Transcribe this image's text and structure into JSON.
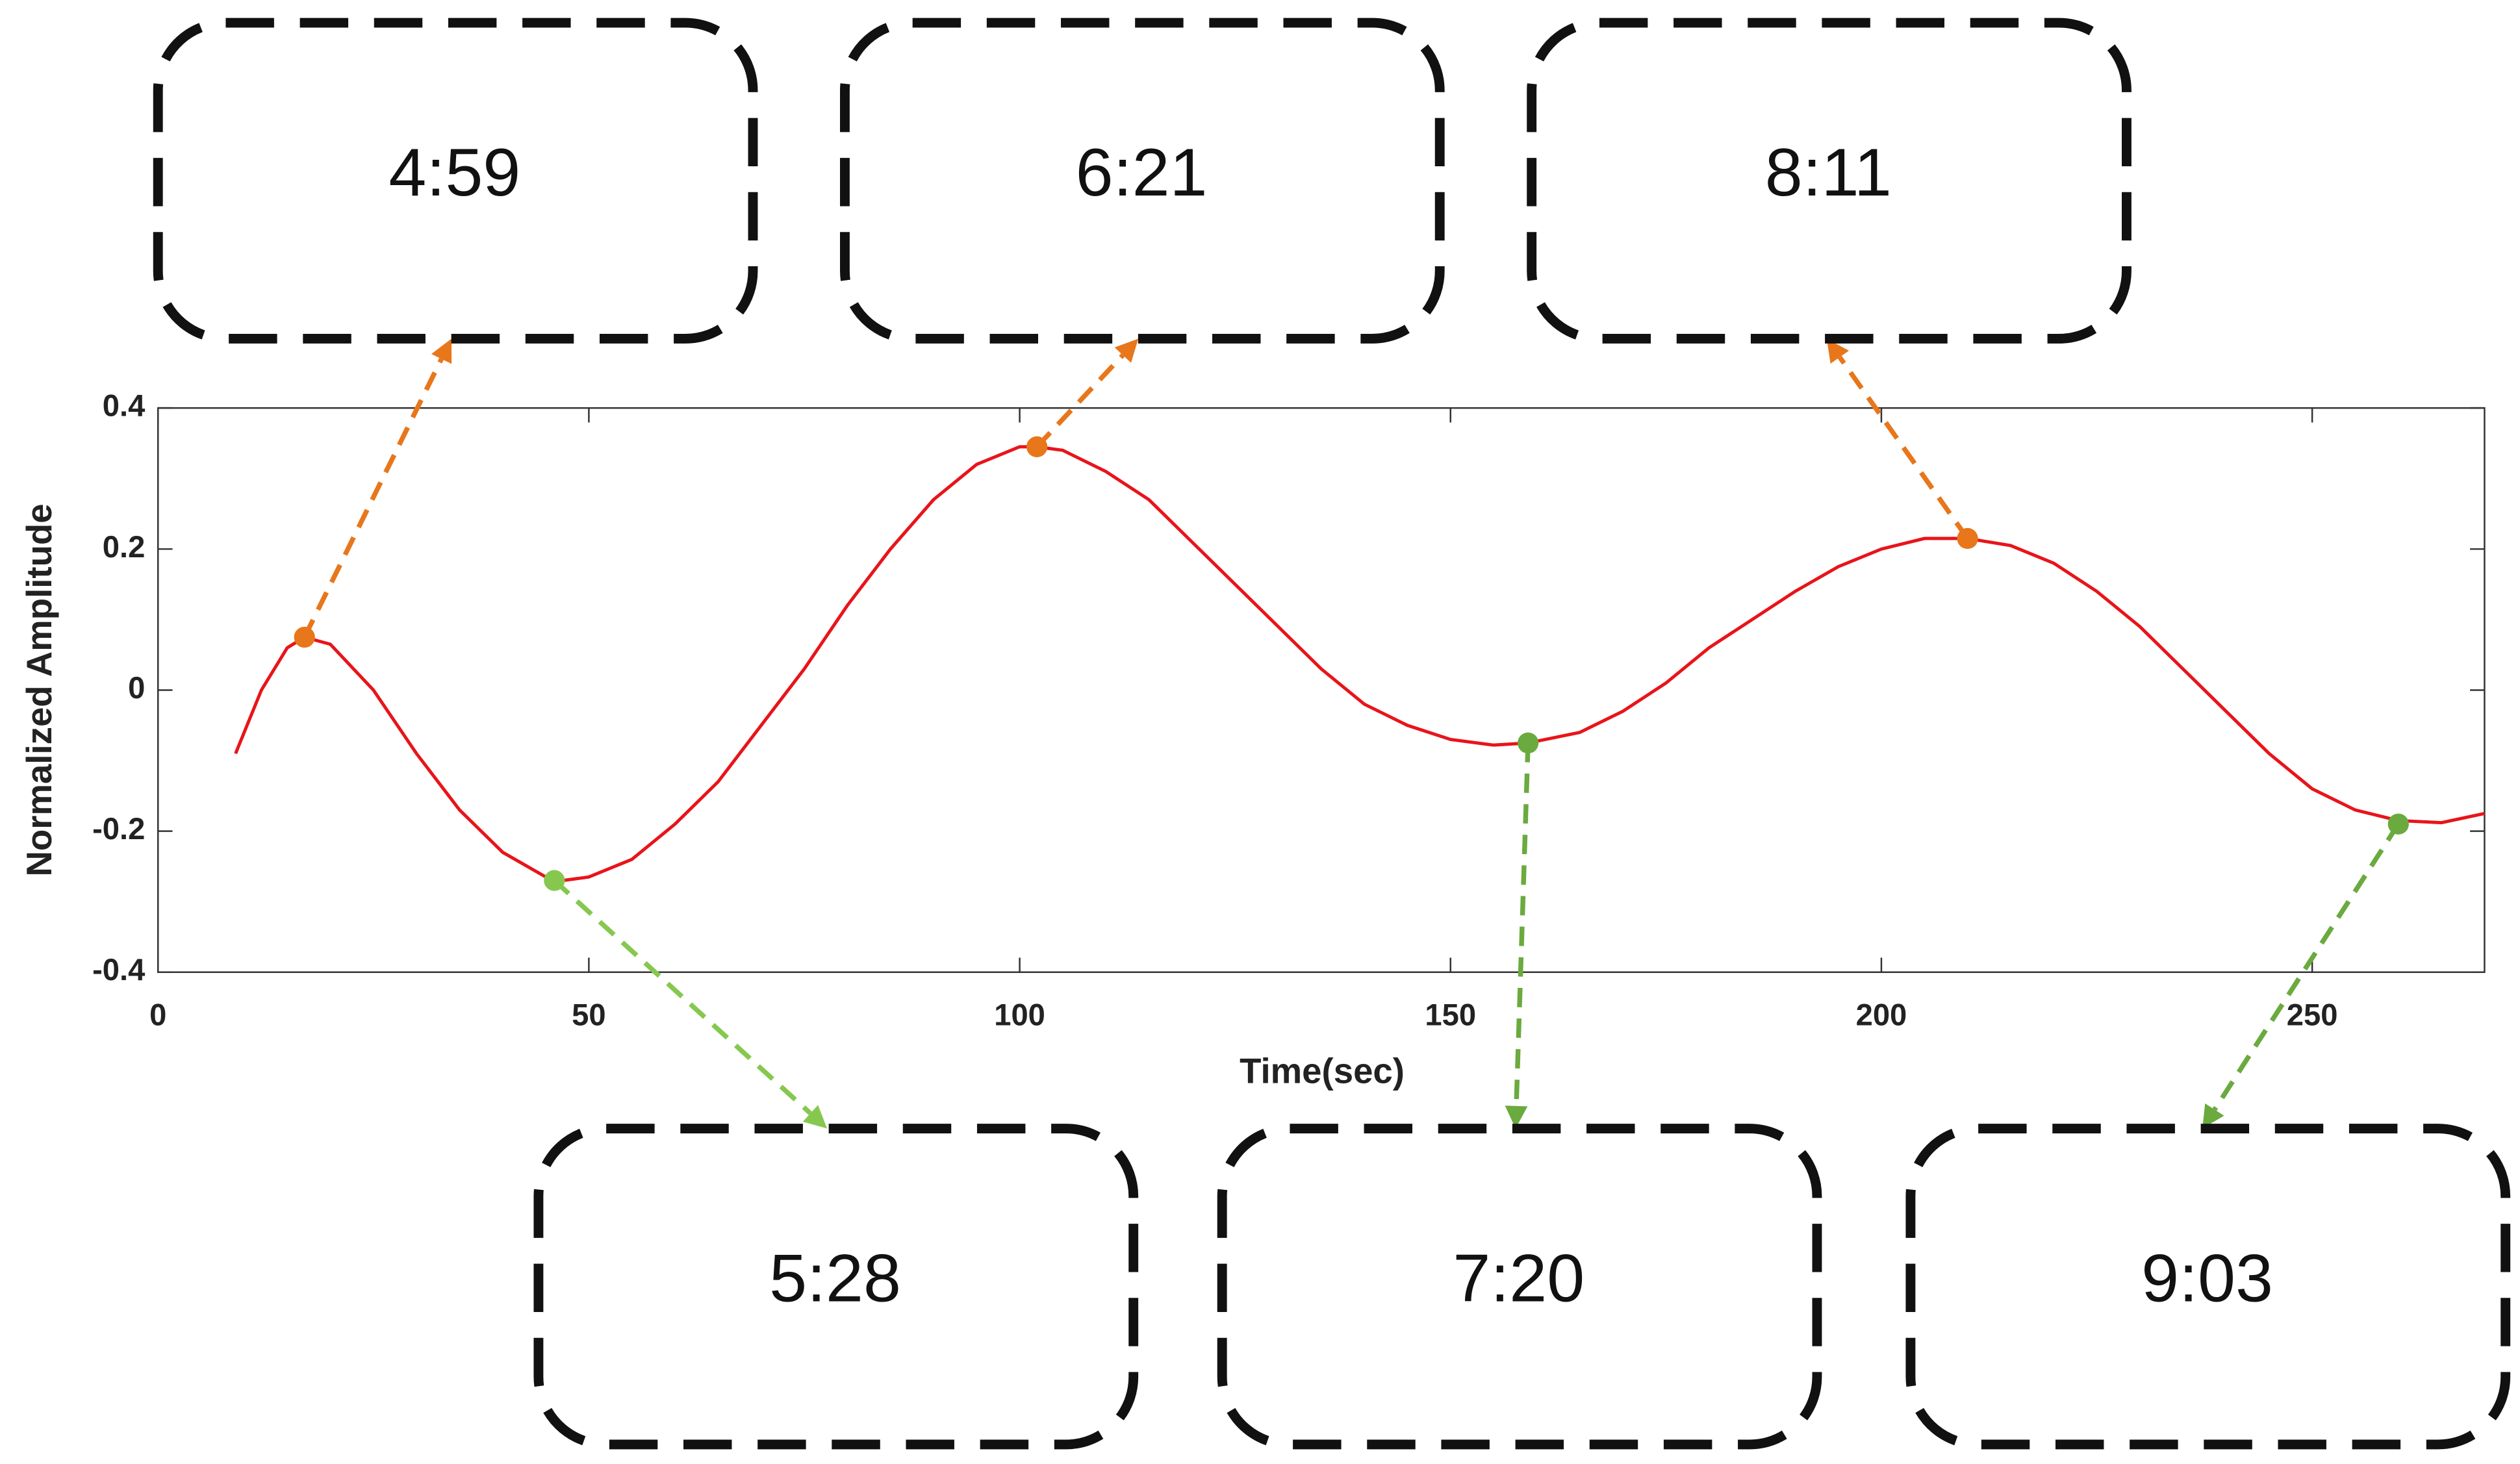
{
  "chart_data": {
    "type": "line",
    "xlabel": "Time(sec)",
    "ylabel": "Normalized Amplitude",
    "x": [
      9,
      12,
      15,
      17,
      20,
      25,
      30,
      35,
      40,
      45,
      47,
      50,
      55,
      60,
      65,
      70,
      75,
      80,
      85,
      90,
      95,
      100,
      102,
      105,
      110,
      115,
      120,
      125,
      130,
      135,
      140,
      145,
      150,
      155,
      159,
      165,
      170,
      175,
      180,
      185,
      190,
      195,
      200,
      205,
      210,
      215,
      220,
      225,
      230,
      235,
      240,
      245,
      250,
      255,
      260,
      265,
      270
    ],
    "values": [
      -0.09,
      0.0,
      0.06,
      0.075,
      0.065,
      0.0,
      -0.09,
      -0.17,
      -0.23,
      -0.265,
      -0.27,
      -0.265,
      -0.24,
      -0.19,
      -0.13,
      -0.05,
      0.03,
      0.12,
      0.2,
      0.27,
      0.32,
      0.345,
      0.345,
      0.34,
      0.31,
      0.27,
      0.21,
      0.15,
      0.09,
      0.03,
      -0.02,
      -0.05,
      -0.07,
      -0.078,
      -0.075,
      -0.06,
      -0.03,
      0.01,
      0.06,
      0.1,
      0.14,
      0.175,
      0.2,
      0.215,
      0.215,
      0.205,
      0.18,
      0.14,
      0.09,
      0.03,
      -0.03,
      -0.09,
      -0.14,
      -0.17,
      -0.185,
      -0.188,
      -0.175
    ],
    "color": "#e8141a",
    "xlim": [
      0,
      270
    ],
    "xticks": [
      0,
      50,
      100,
      150,
      200,
      250
    ],
    "ylim": [
      -0.4,
      0.4
    ],
    "yticks": [
      -0.4,
      -0.2,
      0,
      0.2,
      0.4
    ],
    "annotations": [
      {
        "x": 17,
        "y": 0.075,
        "label": "4:59",
        "color": "#e8761a"
      },
      {
        "x": 46,
        "y": -0.27,
        "label": "5:28",
        "color": "#86c84f"
      },
      {
        "x": 102,
        "y": 0.345,
        "label": "6:21",
        "color": "#e8761a"
      },
      {
        "x": 159,
        "y": -0.075,
        "label": "7:20",
        "color": "#6aaa3e"
      },
      {
        "x": 210,
        "y": 0.215,
        "label": "8:11",
        "color": "#e8761a"
      },
      {
        "x": 260,
        "y": -0.19,
        "label": "9:03",
        "color": "#6aaa3e"
      }
    ]
  }
}
